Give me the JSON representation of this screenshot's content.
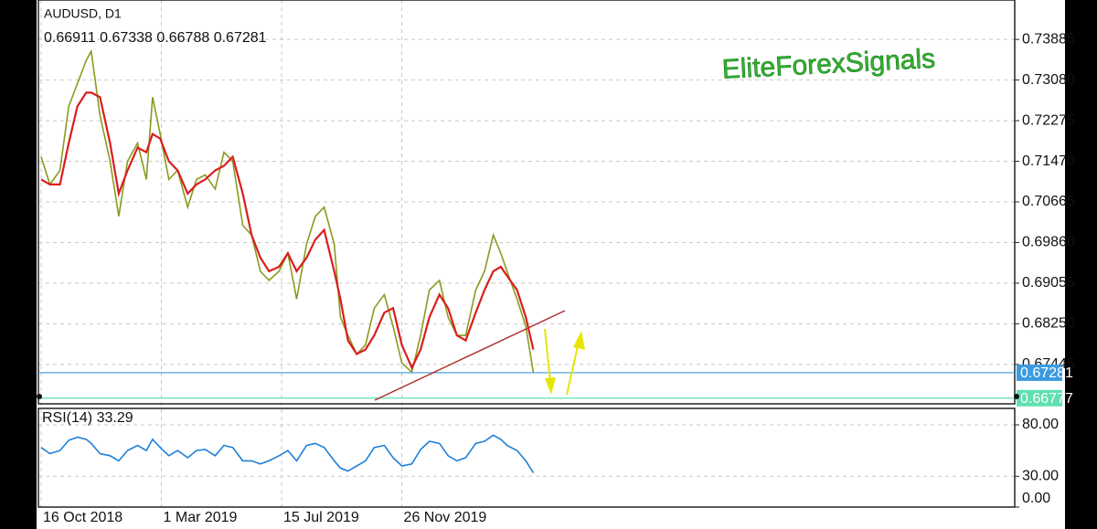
{
  "chart_data": [
    {
      "type": "line",
      "title": "AUDUSD, D1",
      "ohlc": [
        0.66911,
        0.67338,
        0.66788,
        0.67281
      ],
      "watermark": "EliteForexSignals",
      "x": [
        0,
        7,
        15,
        22,
        29,
        36,
        40,
        47,
        55,
        62,
        69,
        77,
        84,
        89,
        95,
        102,
        109,
        117,
        124,
        131,
        139,
        146,
        153,
        161,
        168,
        175,
        182,
        190,
        197,
        204,
        212,
        219,
        226,
        234,
        239,
        245,
        252,
        259,
        266,
        274,
        281,
        288,
        296,
        303,
        310,
        318,
        325,
        332,
        339,
        347,
        354,
        361,
        367,
        372,
        380,
        387,
        393
      ],
      "series": [
        {
          "color": "#8b9a1e",
          "values": [
            0.7156,
            0.7101,
            0.7129,
            0.7256,
            0.7301,
            0.7347,
            0.7365,
            0.7238,
            0.7147,
            0.7038,
            0.7147,
            0.7183,
            0.7111,
            0.7274,
            0.7201,
            0.7111,
            0.7129,
            0.7056,
            0.7111,
            0.712,
            0.7092,
            0.7165,
            0.7147,
            0.702,
            0.7001,
            0.6929,
            0.6911,
            0.6929,
            0.6965,
            0.6874,
            0.6983,
            0.7038,
            0.7056,
            0.6983,
            0.6838,
            0.6802,
            0.6765,
            0.6783,
            0.6856,
            0.6883,
            0.682,
            0.6747,
            0.6729,
            0.6802,
            0.6892,
            0.6911,
            0.6838,
            0.6802,
            0.6802,
            0.6892,
            0.6929,
            0.7001,
            0.6965,
            0.6929,
            0.6874,
            0.682,
            0.67281
          ]
        },
        {
          "color": "#d81e1e",
          "values": [
            0.7111,
            0.7101,
            0.7101,
            0.7183,
            0.7256,
            0.7283,
            0.7283,
            0.7274,
            0.7183,
            0.7083,
            0.7129,
            0.7174,
            0.7165,
            0.7201,
            0.7192,
            0.7147,
            0.7129,
            0.7083,
            0.7101,
            0.7111,
            0.7129,
            0.7138,
            0.7156,
            0.7083,
            0.7001,
            0.6956,
            0.6929,
            0.6938,
            0.6965,
            0.6929,
            0.6956,
            0.6992,
            0.7011,
            0.6929,
            0.6874,
            0.6792,
            0.6765,
            0.6774,
            0.6802,
            0.6847,
            0.6856,
            0.6783,
            0.6738,
            0.6774,
            0.6838,
            0.6883,
            0.6856,
            0.6802,
            0.6792,
            0.6847,
            0.6892,
            0.6929,
            0.6938,
            0.692,
            0.6892,
            0.6838,
            0.6774
          ]
        }
      ],
      "xlim": [
        -2.2,
        777.4
      ],
      "ylim": [
        0.66664,
        0.74666
      ],
      "yticks": [
        0.73885,
        {
          "value": 0.7308,
          "label": "0.73080"
        },
        0.72275,
        {
          "value": 0.7147,
          "label": "0.71470"
        },
        0.70665,
        {
          "value": 0.6986,
          "label": "0.69860"
        },
        0.69055,
        {
          "value": 0.6825,
          "label": "0.68250"
        },
        0.67445
      ],
      "hlines": [
        {
          "value": 0.67281,
          "color": "#3c9be0"
        },
        {
          "value": 0.66777,
          "color": "#5fe0b0"
        }
      ],
      "grid": true
    },
    {
      "type": "line",
      "title": "RSI(14)",
      "current": 33.29,
      "x": [
        0,
        7,
        15,
        22,
        29,
        36,
        40,
        47,
        55,
        62,
        69,
        77,
        84,
        89,
        95,
        102,
        109,
        117,
        124,
        131,
        139,
        146,
        153,
        161,
        168,
        175,
        182,
        190,
        197,
        204,
        212,
        219,
        226,
        234,
        239,
        245,
        252,
        259,
        266,
        274,
        281,
        288,
        296,
        303,
        310,
        318,
        325,
        332,
        339,
        347,
        354,
        361,
        367,
        372,
        380,
        387,
        393
      ],
      "series": [
        {
          "color": "#1e7fd8",
          "values": [
            58,
            52,
            55,
            65,
            68,
            66,
            62,
            52,
            50,
            45,
            55,
            60,
            55,
            66,
            58,
            50,
            55,
            48,
            55,
            56,
            50,
            60,
            58,
            45,
            45,
            42,
            45,
            50,
            55,
            45,
            60,
            62,
            58,
            45,
            38,
            35,
            40,
            45,
            58,
            60,
            48,
            40,
            42,
            56,
            64,
            62,
            50,
            45,
            48,
            62,
            64,
            70,
            66,
            60,
            55,
            45,
            33.29
          ]
        }
      ],
      "xlim": [
        -2.2,
        777.4
      ],
      "ylim": [
        0,
        96
      ],
      "xticks": [
        {
          "value": 0,
          "label": "16 Oct 2018"
        },
        {
          "value": 96,
          "label": "1 Mar 2019"
        },
        {
          "value": 192,
          "label": "15 Jul 2019"
        },
        {
          "value": 288,
          "label": "26 Nov 2019"
        }
      ],
      "yticks": [
        {
          "value": 80,
          "label": "80.00"
        },
        {
          "value": 30,
          "label": "30.00"
        },
        {
          "value": 0,
          "label": "0.00"
        }
      ],
      "grid": true
    }
  ]
}
